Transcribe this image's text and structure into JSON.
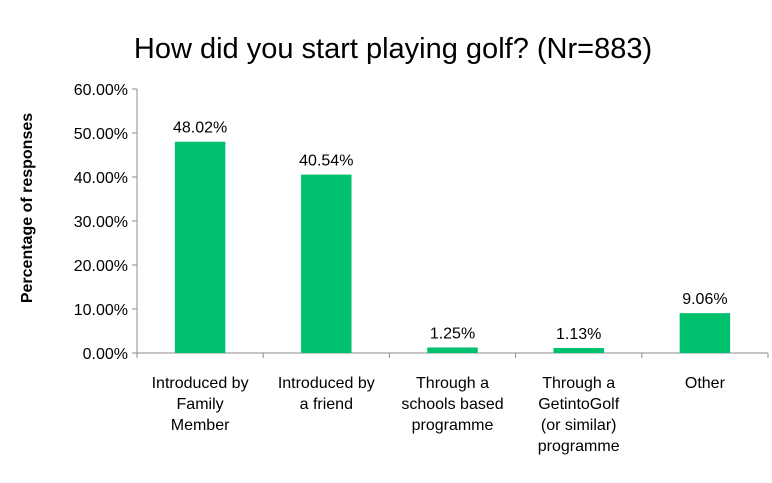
{
  "chart_data": {
    "type": "bar",
    "title": "How did you start playing golf? (Nr=883)",
    "xlabel": "",
    "ylabel": "Percentage of responses",
    "ylim": [
      0,
      0.6
    ],
    "yticks": [
      "0.00%",
      "10.00%",
      "20.00%",
      "30.00%",
      "40.00%",
      "50.00%",
      "60.00%"
    ],
    "grid": false,
    "legend": "none",
    "bar_color": "#00C16E",
    "categories": [
      [
        "Introduced by",
        "Family",
        "Member"
      ],
      [
        "Introduced by",
        "a friend"
      ],
      [
        "Through a",
        "schools based",
        "programme"
      ],
      [
        "Through a",
        "GetintoGolf",
        "(or similar)",
        "programme"
      ],
      [
        "Other"
      ]
    ],
    "values": [
      0.4802,
      0.4054,
      0.0125,
      0.0113,
      0.0906
    ],
    "data_labels": [
      "48.02%",
      "40.54%",
      "1.25%",
      "1.13%",
      "9.06%"
    ]
  }
}
